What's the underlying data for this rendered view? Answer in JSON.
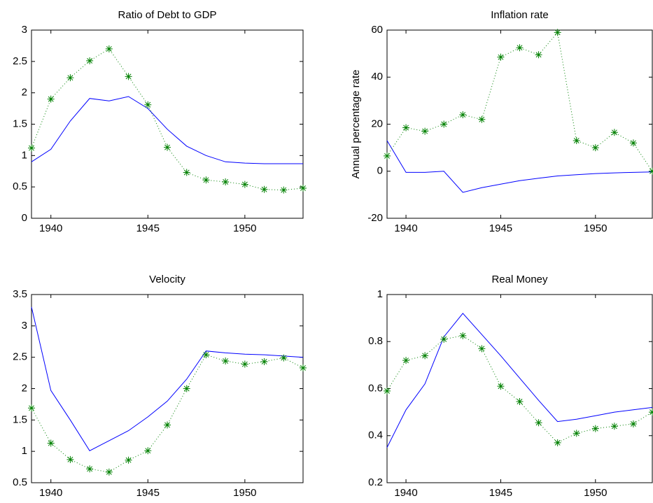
{
  "chart_data": [
    {
      "type": "line",
      "title": "Ratio of Debt to GDP",
      "x": [
        1939,
        1940,
        1941,
        1942,
        1943,
        1944,
        1945,
        1946,
        1947,
        1948,
        1949,
        1950,
        1951,
        1952,
        1953
      ],
      "xlim": [
        1939,
        1953
      ],
      "xticks": [
        1940,
        1945,
        1950
      ],
      "ylim": [
        0,
        3
      ],
      "yticks": [
        0,
        0.5,
        1,
        1.5,
        2,
        2.5,
        3
      ],
      "series": [
        {
          "color": "#0000ff",
          "linestyle": "solid",
          "values": [
            0.9,
            1.1,
            1.55,
            1.91,
            1.87,
            1.94,
            1.75,
            1.42,
            1.15,
            1.0,
            0.9,
            0.88,
            0.87,
            0.87,
            0.87
          ]
        },
        {
          "color": "#008000",
          "linestyle": "dotted",
          "marker": "*",
          "values": [
            1.12,
            1.9,
            2.24,
            2.51,
            2.7,
            2.26,
            1.81,
            1.13,
            0.73,
            0.61,
            0.58,
            0.54,
            0.46,
            0.45,
            0.48
          ]
        }
      ]
    },
    {
      "type": "line",
      "title": "Inflation rate",
      "ylabel": "Annual percentage rate",
      "x": [
        1939,
        1940,
        1941,
        1942,
        1943,
        1944,
        1945,
        1946,
        1947,
        1948,
        1949,
        1950,
        1951,
        1952,
        1953
      ],
      "xlim": [
        1939,
        1953
      ],
      "xticks": [
        1940,
        1945,
        1950
      ],
      "ylim": [
        -20,
        60
      ],
      "yticks": [
        -20,
        0,
        20,
        40,
        60
      ],
      "series": [
        {
          "color": "#0000ff",
          "linestyle": "solid",
          "values": [
            13,
            -0.5,
            -0.5,
            0,
            -9,
            -7,
            -5.5,
            -4,
            -3,
            -2,
            -1.5,
            -1,
            -0.7,
            -0.5,
            -0.3
          ]
        },
        {
          "color": "#008000",
          "linestyle": "dotted",
          "marker": "*",
          "values": [
            6.5,
            18.5,
            17,
            20,
            24,
            22,
            48.5,
            52.5,
            49.5,
            59,
            13,
            10,
            16.5,
            12,
            0
          ]
        }
      ]
    },
    {
      "type": "line",
      "title": "Velocity",
      "x": [
        1939,
        1940,
        1941,
        1942,
        1943,
        1944,
        1945,
        1946,
        1947,
        1948,
        1949,
        1950,
        1951,
        1952,
        1953
      ],
      "xlim": [
        1939,
        1953
      ],
      "xticks": [
        1940,
        1945,
        1950
      ],
      "ylim": [
        0.5,
        3.5
      ],
      "yticks": [
        0.5,
        1,
        1.5,
        2,
        2.5,
        3,
        3.5
      ],
      "series": [
        {
          "color": "#0000ff",
          "linestyle": "solid",
          "values": [
            3.3,
            1.97,
            1.5,
            1.01,
            1.17,
            1.33,
            1.55,
            1.8,
            2.15,
            2.6,
            2.57,
            2.55,
            2.54,
            2.52,
            2.5
          ]
        },
        {
          "color": "#008000",
          "linestyle": "dotted",
          "marker": "*",
          "values": [
            1.69,
            1.13,
            0.87,
            0.72,
            0.67,
            0.86,
            1.01,
            1.42,
            2.0,
            2.54,
            2.44,
            2.39,
            2.43,
            2.49,
            2.33
          ]
        }
      ]
    },
    {
      "type": "line",
      "title": "Real Money",
      "x": [
        1939,
        1940,
        1941,
        1942,
        1943,
        1944,
        1945,
        1946,
        1947,
        1948,
        1949,
        1950,
        1951,
        1952,
        1953
      ],
      "xlim": [
        1939,
        1953
      ],
      "xticks": [
        1940,
        1945,
        1950
      ],
      "ylim": [
        0.2,
        1
      ],
      "yticks": [
        0.2,
        0.4,
        0.6,
        0.8,
        1
      ],
      "series": [
        {
          "color": "#0000ff",
          "linestyle": "solid",
          "values": [
            0.35,
            0.51,
            0.62,
            0.82,
            0.92,
            0.83,
            0.74,
            0.645,
            0.55,
            0.46,
            0.47,
            0.485,
            0.5,
            0.51,
            0.52
          ]
        },
        {
          "color": "#008000",
          "linestyle": "dotted",
          "marker": "*",
          "values": [
            0.59,
            0.72,
            0.74,
            0.81,
            0.825,
            0.77,
            0.61,
            0.545,
            0.455,
            0.37,
            0.41,
            0.43,
            0.44,
            0.45,
            0.5
          ]
        }
      ]
    }
  ]
}
